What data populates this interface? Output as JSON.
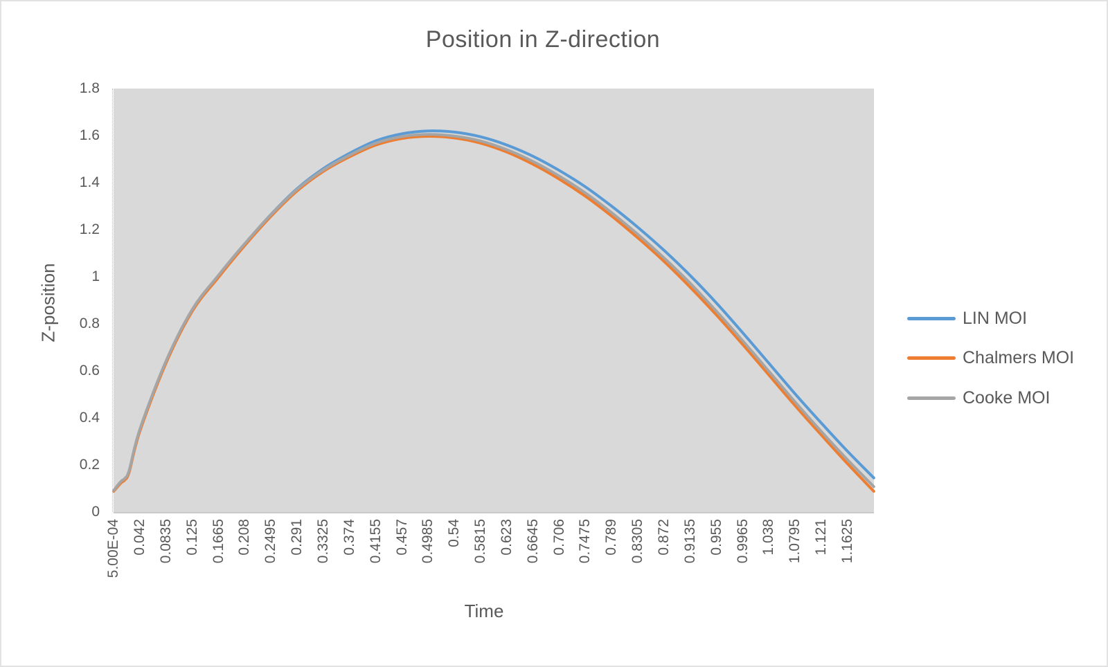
{
  "title": "Position in Z-direction",
  "axes": {
    "y_label": "Z-position",
    "x_label": "Time",
    "y_ticks": [
      "1.8",
      "1.6",
      "1.4",
      "1.2",
      "1",
      "0.8",
      "0.6",
      "0.4",
      "0.2",
      "0"
    ],
    "x_ticks": [
      "5.00E-04",
      "0.042",
      "0.0835",
      "0.125",
      "0.1665",
      "0.208",
      "0.2495",
      "0.291",
      "0.3325",
      "0.374",
      "0.4155",
      "0.457",
      "0.4985",
      "0.54",
      "0.5815",
      "0.623",
      "0.6645",
      "0.706",
      "0.7475",
      "0.789",
      "0.8305",
      "0.872",
      "0.9135",
      "0.955",
      "0.9965",
      "1.038",
      "1.0795",
      "1.121",
      "1.1625"
    ]
  },
  "legend": [
    {
      "label": "LIN MOI",
      "color": "#5B9BD5"
    },
    {
      "label": "Chalmers MOI",
      "color": "#ED7D31"
    },
    {
      "label": "Cooke MOI",
      "color": "#A5A5A5"
    }
  ],
  "colors": {
    "plot_background": "#D9D9D9",
    "chart_background": "#FFFFFF",
    "text": "#595959"
  },
  "chart_data": {
    "type": "line",
    "title": "Position in Z-direction",
    "xlabel": "Time",
    "ylabel": "Z-position",
    "ylim": [
      0,
      1.8
    ],
    "x_range": [
      0.0005,
      1.204
    ],
    "x_tick_start": 0.0005,
    "x_tick_interval": 0.0415,
    "x_tick_labels": [
      "5.00E-04",
      "0.042",
      "0.0835",
      "0.125",
      "0.1665",
      "0.208",
      "0.2495",
      "0.291",
      "0.3325",
      "0.374",
      "0.4155",
      "0.457",
      "0.4985",
      "0.54",
      "0.5815",
      "0.623",
      "0.6645",
      "0.706",
      "0.7475",
      "0.789",
      "0.8305",
      "0.872",
      "0.9135",
      "0.955",
      "0.9965",
      "1.038",
      "1.0795",
      "1.121",
      "1.1625"
    ],
    "grid": false,
    "legend_position": "right",
    "x": [
      0.0005,
      0.008,
      0.013,
      0.018,
      0.025,
      0.042,
      0.0835,
      0.125,
      0.1665,
      0.208,
      0.2495,
      0.291,
      0.3325,
      0.374,
      0.4155,
      0.457,
      0.4985,
      0.54,
      0.5815,
      0.623,
      0.6645,
      0.706,
      0.7475,
      0.789,
      0.8305,
      0.872,
      0.9135,
      0.955,
      0.9965,
      1.038,
      1.0795,
      1.121,
      1.1625,
      1.204
    ],
    "series": [
      {
        "name": "LIN MOI",
        "color": "#5B9BD5",
        "values": [
          0.09,
          0.115,
          0.13,
          0.14,
          0.175,
          0.35,
          0.64,
          0.86,
          1.005,
          1.14,
          1.265,
          1.375,
          1.46,
          1.525,
          1.578,
          1.608,
          1.62,
          1.615,
          1.595,
          1.56,
          1.512,
          1.452,
          1.382,
          1.3,
          1.21,
          1.112,
          1.005,
          0.888,
          0.762,
          0.632,
          0.502,
          0.378,
          0.258,
          0.145
        ]
      },
      {
        "name": "Chalmers MOI",
        "color": "#ED7D31",
        "values": [
          0.088,
          0.112,
          0.126,
          0.136,
          0.17,
          0.344,
          0.634,
          0.854,
          0.998,
          1.133,
          1.257,
          1.365,
          1.448,
          1.51,
          1.56,
          1.588,
          1.597,
          1.59,
          1.568,
          1.53,
          1.478,
          1.415,
          1.342,
          1.258,
          1.165,
          1.065,
          0.955,
          0.837,
          0.712,
          0.582,
          0.452,
          0.327,
          0.205,
          0.088
        ]
      },
      {
        "name": "Cooke MOI",
        "color": "#A5A5A5",
        "values": [
          0.092,
          0.118,
          0.133,
          0.143,
          0.178,
          0.353,
          0.643,
          0.862,
          1.007,
          1.141,
          1.264,
          1.372,
          1.454,
          1.517,
          1.568,
          1.596,
          1.605,
          1.598,
          1.577,
          1.54,
          1.49,
          1.428,
          1.356,
          1.272,
          1.18,
          1.08,
          0.972,
          0.853,
          0.728,
          0.598,
          0.468,
          0.342,
          0.222,
          0.108
        ]
      }
    ],
    "draw_order": [
      "LIN MOI",
      "Chalmers MOI",
      "Cooke MOI"
    ],
    "line_width": 4
  }
}
